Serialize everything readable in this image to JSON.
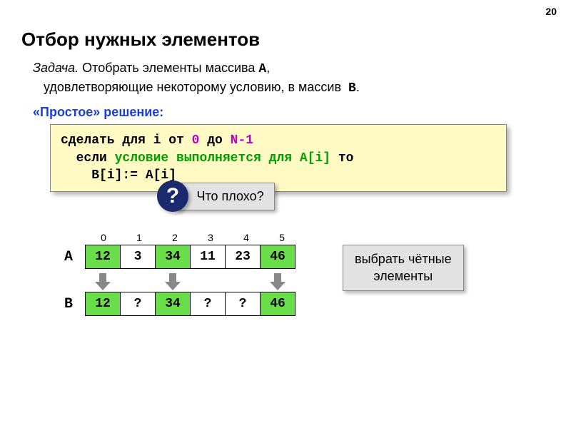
{
  "page_number": "20",
  "title": "Отбор нужных элементов",
  "task": {
    "label": "Задача.",
    "text1": " Отобрать элементы массива ",
    "arrA": "A",
    "text2": ",\n   удовлетворяющие некоторому условию, в массив  ",
    "arrB": "B",
    "text3": "."
  },
  "solution_label": "«Простое» решение:",
  "code": {
    "line1_a": "сделать для i от ",
    "line1_zero": "0",
    "line1_b": " до ",
    "line1_nminus1": "N-1",
    "line2_a": "  если ",
    "line2_cond": "условие выполняется для A[i]",
    "line2_b": " то",
    "line3": "    B[i]:= A[i]"
  },
  "callout": {
    "badge": "?",
    "text": "Что плохо?"
  },
  "arrays": {
    "indices": [
      "0",
      "1",
      "2",
      "3",
      "4",
      "5"
    ],
    "labelA": "A",
    "labelB": "B",
    "A": [
      {
        "v": "12",
        "bg": "#6ade4a"
      },
      {
        "v": "3",
        "bg": "#ffffff"
      },
      {
        "v": "34",
        "bg": "#6ade4a"
      },
      {
        "v": "11",
        "bg": "#ffffff"
      },
      {
        "v": "23",
        "bg": "#ffffff"
      },
      {
        "v": "46",
        "bg": "#6ade4a"
      }
    ],
    "arrows": [
      true,
      false,
      true,
      false,
      false,
      true
    ],
    "B": [
      {
        "v": "12",
        "bg": "#6ade4a"
      },
      {
        "v": "?",
        "bg": "#ffffff"
      },
      {
        "v": "34",
        "bg": "#6ade4a"
      },
      {
        "v": "?",
        "bg": "#ffffff"
      },
      {
        "v": "?",
        "bg": "#ffffff"
      },
      {
        "v": "46",
        "bg": "#6ade4a"
      }
    ]
  },
  "select_box": "выбрать чётные\nэлементы",
  "colors": {
    "code_bg": "#fff9c4",
    "callout_bg": "#e2e2e2",
    "badge_bg": "#1a2a6c",
    "cell_even": "#6ade4a",
    "cell_odd": "#ffffff",
    "blue_text": "#1a3fd9",
    "magenta": "#c000c0",
    "green": "#00a000"
  }
}
